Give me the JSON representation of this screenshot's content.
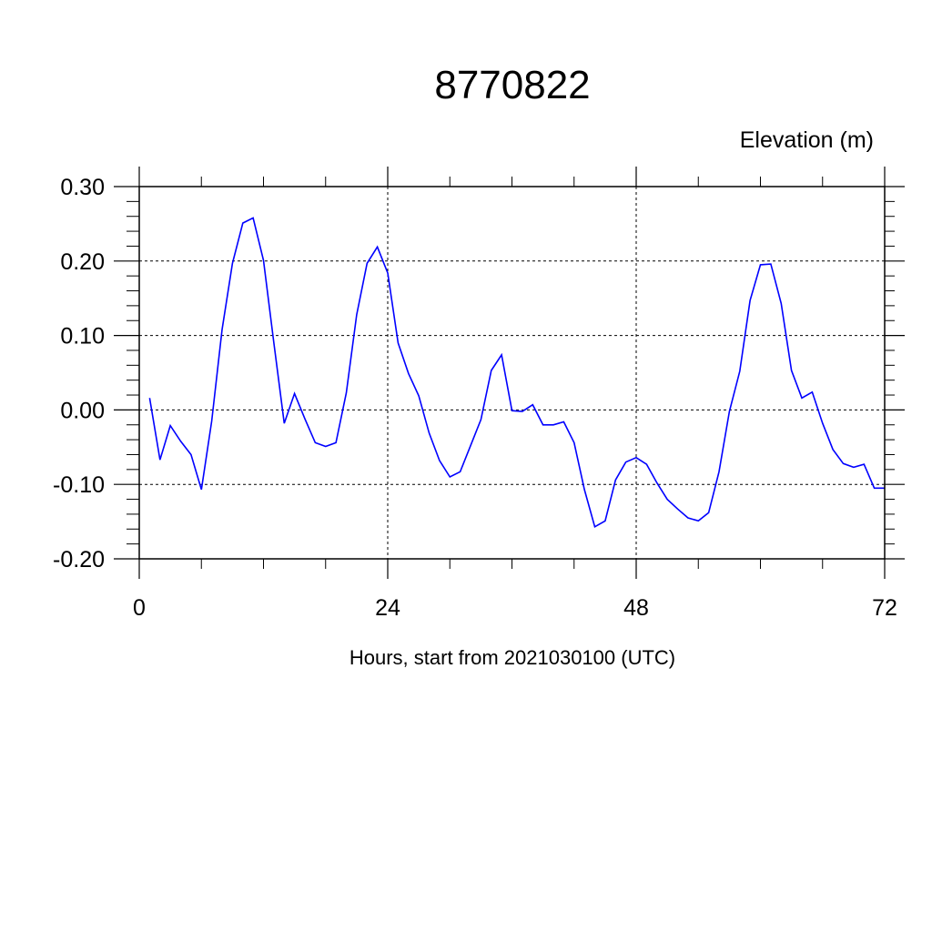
{
  "chart_data": {
    "type": "line",
    "title": "8770822",
    "subtitle": "Elevation (m)",
    "xlabel": "Hours, start from 2021030100 (UTC)",
    "ylabel": "",
    "xlim": [
      0,
      72
    ],
    "ylim": [
      -0.2,
      0.3
    ],
    "xticks": [
      0,
      24,
      48,
      72
    ],
    "xtick_labels": [
      "0",
      "24",
      "48",
      "72"
    ],
    "yticks": [
      -0.2,
      -0.1,
      0.0,
      0.1,
      0.2,
      0.3
    ],
    "ytick_labels": [
      "-0.20",
      "-0.10",
      "0.00",
      "0.10",
      "0.20",
      "0.30"
    ],
    "grid": true,
    "line_color": "#0000ff",
    "series": [
      {
        "x": [
          1,
          2,
          3,
          4,
          5,
          6,
          7,
          8,
          9,
          10,
          11,
          12,
          13,
          14,
          15,
          16,
          17,
          18,
          19,
          20,
          21,
          22,
          23,
          24,
          25,
          26,
          27,
          28,
          29,
          30,
          31,
          32,
          33,
          34,
          35,
          36,
          37,
          38,
          39,
          40,
          41,
          42,
          43,
          44,
          45,
          46,
          47,
          48,
          49,
          50,
          51,
          52,
          53,
          54,
          55,
          56,
          57,
          58,
          59,
          60,
          61,
          62,
          63,
          64,
          65,
          66,
          67,
          68,
          69,
          70,
          71,
          72
        ],
        "values": [
          0.016,
          -0.067,
          -0.021,
          -0.042,
          -0.06,
          -0.107,
          -0.015,
          0.108,
          0.197,
          0.251,
          0.258,
          0.201,
          0.09,
          -0.018,
          0.022,
          -0.012,
          -0.044,
          -0.049,
          -0.044,
          0.023,
          0.128,
          0.197,
          0.219,
          0.184,
          0.09,
          0.049,
          0.019,
          -0.031,
          -0.068,
          -0.09,
          -0.083,
          -0.048,
          -0.013,
          0.053,
          0.074,
          -0.001,
          -0.002,
          0.007,
          -0.02,
          -0.02,
          -0.016,
          -0.044,
          -0.107,
          -0.157,
          -0.149,
          -0.094,
          -0.07,
          -0.064,
          -0.073,
          -0.098,
          -0.12,
          -0.133,
          -0.145,
          -0.149,
          -0.138,
          -0.083,
          -0.002,
          0.052,
          0.147,
          0.195,
          0.196,
          0.143,
          0.053,
          0.016,
          0.024,
          -0.018,
          -0.053,
          -0.072,
          -0.077,
          -0.073,
          -0.105,
          -0.105
        ]
      }
    ]
  }
}
